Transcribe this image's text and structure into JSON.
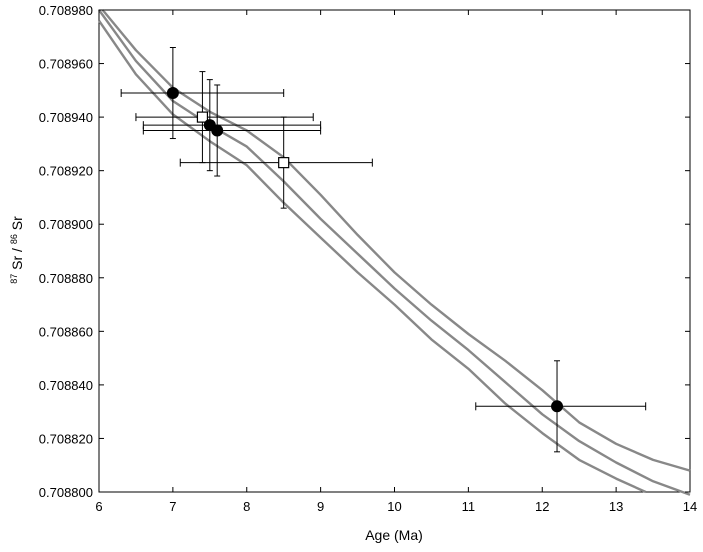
{
  "chart_data": {
    "type": "scatter",
    "xlabel": "Age (Ma)",
    "ylabel": {
      "iso1_mass": "87",
      "iso1_element": "Sr",
      "slash": "/",
      "iso2_mass": "86",
      "iso2_element": "Sr"
    },
    "xlim": [
      6,
      14
    ],
    "ylim": [
      0.7088,
      0.70898
    ],
    "x_ticks": [
      {
        "value": 6,
        "label": "6"
      },
      {
        "value": 7,
        "label": "7"
      },
      {
        "value": 8,
        "label": "8"
      },
      {
        "value": 9,
        "label": "9"
      },
      {
        "value": 10,
        "label": "10"
      },
      {
        "value": 11,
        "label": "11"
      },
      {
        "value": 12,
        "label": "12"
      },
      {
        "value": 13,
        "label": "13"
      },
      {
        "value": 14,
        "label": "14"
      }
    ],
    "y_ticks": [
      {
        "value": 0.7088,
        "label": "0.708800"
      },
      {
        "value": 0.70882,
        "label": "0.708820"
      },
      {
        "value": 0.70884,
        "label": "0.708840"
      },
      {
        "value": 0.70886,
        "label": "0.708860"
      },
      {
        "value": 0.70888,
        "label": "0.708880"
      },
      {
        "value": 0.7089,
        "label": "0.708900"
      },
      {
        "value": 0.70892,
        "label": "0.708920"
      },
      {
        "value": 0.70894,
        "label": "0.708940"
      },
      {
        "value": 0.70896,
        "label": "0.708960"
      },
      {
        "value": 0.70898,
        "label": "0.708980"
      }
    ],
    "grid": false,
    "curves": [
      {
        "color": "#888888",
        "x": [
          6.05,
          6.5,
          7.0,
          7.5,
          8.0,
          8.5,
          9.0,
          9.5,
          10.0,
          10.5,
          11.0,
          11.5,
          12.0,
          12.5,
          13.0,
          13.5,
          14.0
        ],
        "y": [
          0.70898,
          0.708965,
          0.708951,
          0.708942,
          0.708935,
          0.708925,
          0.708911,
          0.708896,
          0.708882,
          0.70887,
          0.708859,
          0.708849,
          0.708838,
          0.708826,
          0.708818,
          0.708812,
          0.708808
        ]
      },
      {
        "color": "#888888",
        "x": [
          6.0,
          6.5,
          7.0,
          7.5,
          8.0,
          8.5,
          9.0,
          9.5,
          10.0,
          10.5,
          11.0,
          11.5,
          12.0,
          12.5,
          13.0,
          13.5,
          14.0
        ],
        "y": [
          0.70898,
          0.708961,
          0.708946,
          0.708937,
          0.708929,
          0.708916,
          0.708902,
          0.708889,
          0.708876,
          0.708864,
          0.708853,
          0.708841,
          0.708829,
          0.708819,
          0.708811,
          0.708804,
          0.708799
        ]
      },
      {
        "color": "#888888",
        "x": [
          6.0,
          6.5,
          7.0,
          7.5,
          8.0,
          8.5,
          9.0,
          9.5,
          10.0,
          10.5,
          11.0,
          11.5,
          12.0,
          12.5,
          13.0,
          13.4
        ],
        "y": [
          0.708976,
          0.708956,
          0.708941,
          0.708931,
          0.708922,
          0.708908,
          0.708895,
          0.708882,
          0.70887,
          0.708857,
          0.708846,
          0.708833,
          0.708822,
          0.708812,
          0.708805,
          0.7088
        ]
      }
    ],
    "points": [
      {
        "marker": "filled-circle",
        "x": 7.0,
        "y": 0.708949,
        "xerr": [
          6.3,
          8.5
        ],
        "yerr": [
          0.708932,
          0.708966
        ]
      },
      {
        "marker": "open-square",
        "x": 7.4,
        "y": 0.70894,
        "xerr": [
          6.5,
          8.9
        ],
        "yerr": [
          0.708923,
          0.708957
        ]
      },
      {
        "marker": "filled-circle",
        "x": 7.5,
        "y": 0.708937,
        "xerr": [
          6.6,
          9.0
        ],
        "yerr": [
          0.70892,
          0.708954
        ]
      },
      {
        "marker": "filled-circle",
        "x": 7.6,
        "y": 0.708935,
        "xerr": [
          6.6,
          9.0
        ],
        "yerr": [
          0.708918,
          0.708952
        ]
      },
      {
        "marker": "open-square",
        "x": 8.5,
        "y": 0.708923,
        "xerr": [
          7.1,
          9.7
        ],
        "yerr": [
          0.708906,
          0.70894
        ]
      },
      {
        "marker": "filled-circle",
        "x": 12.2,
        "y": 0.708832,
        "xerr": [
          11.1,
          13.4
        ],
        "yerr": [
          0.708815,
          0.708849
        ]
      }
    ]
  }
}
